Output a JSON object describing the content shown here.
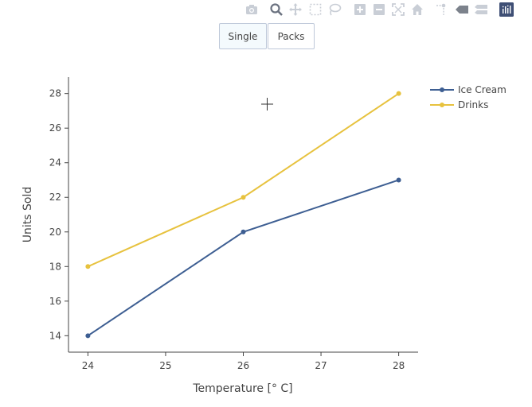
{
  "modebar": {
    "buttons": [
      {
        "name": "camera-icon",
        "title": "Download plot as a png"
      },
      {
        "name": "zoom-icon",
        "title": "Zoom"
      },
      {
        "name": "pan-icon",
        "title": "Pan"
      },
      {
        "name": "box-select-icon",
        "title": "Box Select"
      },
      {
        "name": "lasso-select-icon",
        "title": "Lasso Select"
      },
      {
        "name": "zoom-in-icon",
        "title": "Zoom in"
      },
      {
        "name": "zoom-out-icon",
        "title": "Zoom out"
      },
      {
        "name": "autoscale-icon",
        "title": "Autoscale"
      },
      {
        "name": "home-icon",
        "title": "Reset axes"
      },
      {
        "name": "spike-lines-icon",
        "title": "Toggle Spike Lines"
      },
      {
        "name": "hover-closest-icon",
        "title": "Show closest data on hover"
      },
      {
        "name": "hover-compare-icon",
        "title": "Compare data on hover"
      },
      {
        "name": "plotly-logo-icon",
        "title": "Produced with Plotly"
      }
    ],
    "active": "zoom-icon"
  },
  "updatemenu": {
    "buttons": [
      {
        "label": "Single",
        "active": true
      },
      {
        "label": "Packs",
        "active": false
      }
    ]
  },
  "chart_data": {
    "type": "line",
    "title": "",
    "xlabel": "Temperature [° C]",
    "ylabel": "Units Sold",
    "xlim": [
      23.75,
      28.25
    ],
    "ylim": [
      13.05,
      28.95
    ],
    "xticks": [
      24,
      25,
      26,
      27,
      28
    ],
    "yticks": [
      14,
      16,
      18,
      20,
      22,
      24,
      26,
      28
    ],
    "grid": false,
    "legend": "top-right",
    "series": [
      {
        "name": "Ice Cream",
        "x": [
          24,
          26,
          28
        ],
        "y": [
          14,
          20,
          23
        ],
        "color": "#3d5e92"
      },
      {
        "name": "Drinks",
        "x": [
          24,
          26,
          28
        ],
        "y": [
          18,
          22,
          28
        ],
        "color": "#e7c23e"
      }
    ]
  }
}
